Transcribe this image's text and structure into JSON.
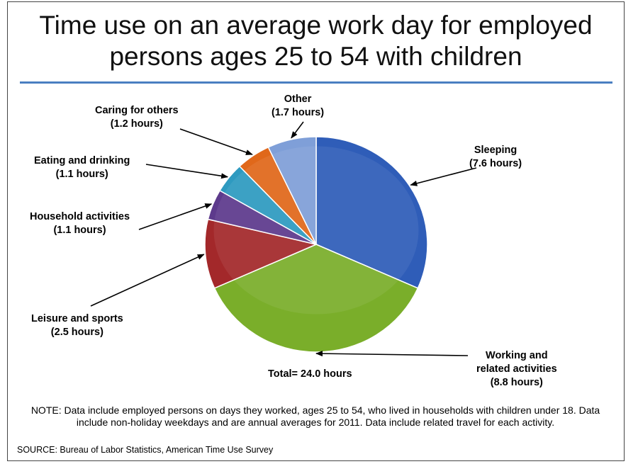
{
  "title_line1": "Time use on an average work day for employed",
  "title_line2": "persons ages 25 to 54 with children",
  "total_label": "Total= 24.0 hours",
  "note": "NOTE: Data include employed persons on days they worked, ages 25 to 54, who lived in households with children under 18. Data include non-holiday weekdays and are annual averages for 2011. Data include related travel for each activity.",
  "source": "SOURCE: Bureau of Labor Statistics, American Time Use Survey",
  "colors": {
    "sleeping": "#2f5db8",
    "working": "#7aae2a",
    "leisure": "#a3282a",
    "household": "#5d3a8c",
    "eating": "#2e9ac0",
    "caring": "#e0681a",
    "other": "#7f9fd8",
    "rule": "#4a7fc1"
  },
  "chart_data": {
    "type": "pie",
    "title": "Time use on an average work day for employed persons ages 25 to 54 with children",
    "unit": "hours",
    "slices": [
      {
        "key": "sleeping",
        "name": "Sleeping",
        "value": 7.6,
        "value_label": "(7.6 hours)",
        "label_lines": [
          "Sleeping"
        ]
      },
      {
        "key": "working",
        "name": "Working and related activities",
        "value": 8.8,
        "value_label": "(8.8 hours)",
        "label_lines": [
          "Working and",
          "related activities"
        ]
      },
      {
        "key": "leisure",
        "name": "Leisure and sports",
        "value": 2.5,
        "value_label": "(2.5 hours)",
        "label_lines": [
          "Leisure and sports"
        ]
      },
      {
        "key": "household",
        "name": "Household activities",
        "value": 1.1,
        "value_label": "(1.1 hours)",
        "label_lines": [
          "Household activities"
        ]
      },
      {
        "key": "eating",
        "name": "Eating and drinking",
        "value": 1.1,
        "value_label": "(1.1 hours)",
        "label_lines": [
          "Eating and drinking"
        ]
      },
      {
        "key": "caring",
        "name": "Caring for others",
        "value": 1.2,
        "value_label": "(1.2 hours)",
        "label_lines": [
          "Caring for others"
        ]
      },
      {
        "key": "other",
        "name": "Other",
        "value": 1.7,
        "value_label": "(1.7 hours)",
        "label_lines": [
          "Other"
        ]
      }
    ],
    "total": 24.0
  }
}
